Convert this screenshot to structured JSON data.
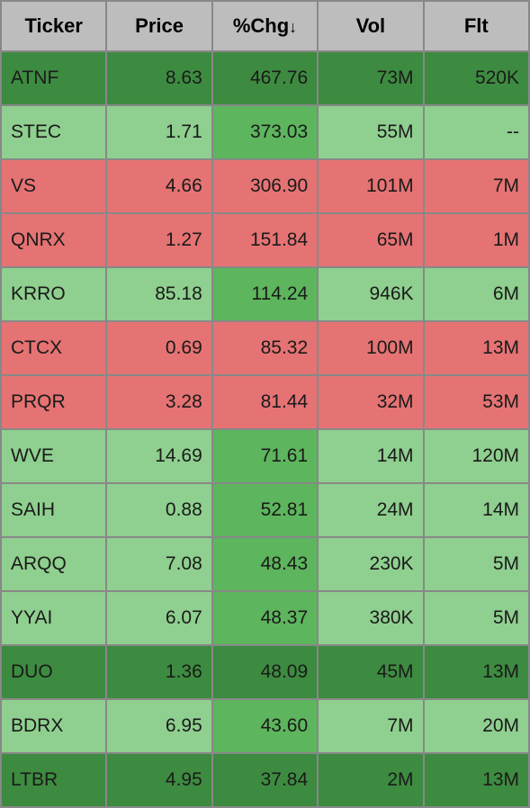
{
  "colors": {
    "dark_green": "#3d8b40",
    "light_green": "#8fcf8f",
    "mid_green": "#5db55d",
    "red": "#e57373",
    "header_bg": "#bdbdbd",
    "border": "#888888"
  },
  "columns": [
    {
      "key": "ticker",
      "label": "Ticker",
      "align": "left",
      "sortable": true
    },
    {
      "key": "price",
      "label": "Price",
      "align": "right",
      "sortable": true
    },
    {
      "key": "chg",
      "label": "%Chg",
      "align": "right",
      "sortable": true,
      "sorted": "desc"
    },
    {
      "key": "vol",
      "label": "Vol",
      "align": "right",
      "sortable": true
    },
    {
      "key": "flt",
      "label": "Flt",
      "align": "right",
      "sortable": true
    }
  ],
  "col_widths": [
    "20%",
    "20%",
    "20%",
    "20%",
    "20%"
  ],
  "sort_arrow": "↓",
  "rows": [
    {
      "ticker": "ATNF",
      "price": "8.63",
      "chg": "467.76",
      "vol": "73M",
      "flt": "520K",
      "bg": {
        "ticker": "dark_green",
        "price": "dark_green",
        "chg": "dark_green",
        "vol": "dark_green",
        "flt": "dark_green"
      }
    },
    {
      "ticker": "STEC",
      "price": "1.71",
      "chg": "373.03",
      "vol": "55M",
      "flt": "--",
      "bg": {
        "ticker": "light_green",
        "price": "light_green",
        "chg": "mid_green",
        "vol": "light_green",
        "flt": "light_green"
      }
    },
    {
      "ticker": "VS",
      "price": "4.66",
      "chg": "306.90",
      "vol": "101M",
      "flt": "7M",
      "bg": {
        "ticker": "red",
        "price": "red",
        "chg": "red",
        "vol": "red",
        "flt": "red"
      }
    },
    {
      "ticker": "QNRX",
      "price": "1.27",
      "chg": "151.84",
      "vol": "65M",
      "flt": "1M",
      "bg": {
        "ticker": "red",
        "price": "red",
        "chg": "red",
        "vol": "red",
        "flt": "red"
      }
    },
    {
      "ticker": "KRRO",
      "price": "85.18",
      "chg": "114.24",
      "vol": "946K",
      "flt": "6M",
      "bg": {
        "ticker": "light_green",
        "price": "light_green",
        "chg": "mid_green",
        "vol": "light_green",
        "flt": "light_green"
      }
    },
    {
      "ticker": "CTCX",
      "price": "0.69",
      "chg": "85.32",
      "vol": "100M",
      "flt": "13M",
      "bg": {
        "ticker": "red",
        "price": "red",
        "chg": "red",
        "vol": "red",
        "flt": "red"
      }
    },
    {
      "ticker": "PRQR",
      "price": "3.28",
      "chg": "81.44",
      "vol": "32M",
      "flt": "53M",
      "bg": {
        "ticker": "red",
        "price": "red",
        "chg": "red",
        "vol": "red",
        "flt": "red"
      }
    },
    {
      "ticker": "WVE",
      "price": "14.69",
      "chg": "71.61",
      "vol": "14M",
      "flt": "120M",
      "bg": {
        "ticker": "light_green",
        "price": "light_green",
        "chg": "mid_green",
        "vol": "light_green",
        "flt": "light_green"
      }
    },
    {
      "ticker": "SAIH",
      "price": "0.88",
      "chg": "52.81",
      "vol": "24M",
      "flt": "14M",
      "bg": {
        "ticker": "light_green",
        "price": "light_green",
        "chg": "mid_green",
        "vol": "light_green",
        "flt": "light_green"
      }
    },
    {
      "ticker": "ARQQ",
      "price": "7.08",
      "chg": "48.43",
      "vol": "230K",
      "flt": "5M",
      "bg": {
        "ticker": "light_green",
        "price": "light_green",
        "chg": "mid_green",
        "vol": "light_green",
        "flt": "light_green"
      }
    },
    {
      "ticker": "YYAI",
      "price": "6.07",
      "chg": "48.37",
      "vol": "380K",
      "flt": "5M",
      "bg": {
        "ticker": "light_green",
        "price": "light_green",
        "chg": "mid_green",
        "vol": "light_green",
        "flt": "light_green"
      }
    },
    {
      "ticker": "DUO",
      "price": "1.36",
      "chg": "48.09",
      "vol": "45M",
      "flt": "13M",
      "bg": {
        "ticker": "dark_green",
        "price": "dark_green",
        "chg": "dark_green",
        "vol": "dark_green",
        "flt": "dark_green"
      }
    },
    {
      "ticker": "BDRX",
      "price": "6.95",
      "chg": "43.60",
      "vol": "7M",
      "flt": "20M",
      "bg": {
        "ticker": "light_green",
        "price": "light_green",
        "chg": "mid_green",
        "vol": "light_green",
        "flt": "light_green"
      }
    },
    {
      "ticker": "LTBR",
      "price": "4.95",
      "chg": "37.84",
      "vol": "2M",
      "flt": "13M",
      "bg": {
        "ticker": "dark_green",
        "price": "dark_green",
        "chg": "dark_green",
        "vol": "dark_green",
        "flt": "dark_green"
      }
    }
  ]
}
